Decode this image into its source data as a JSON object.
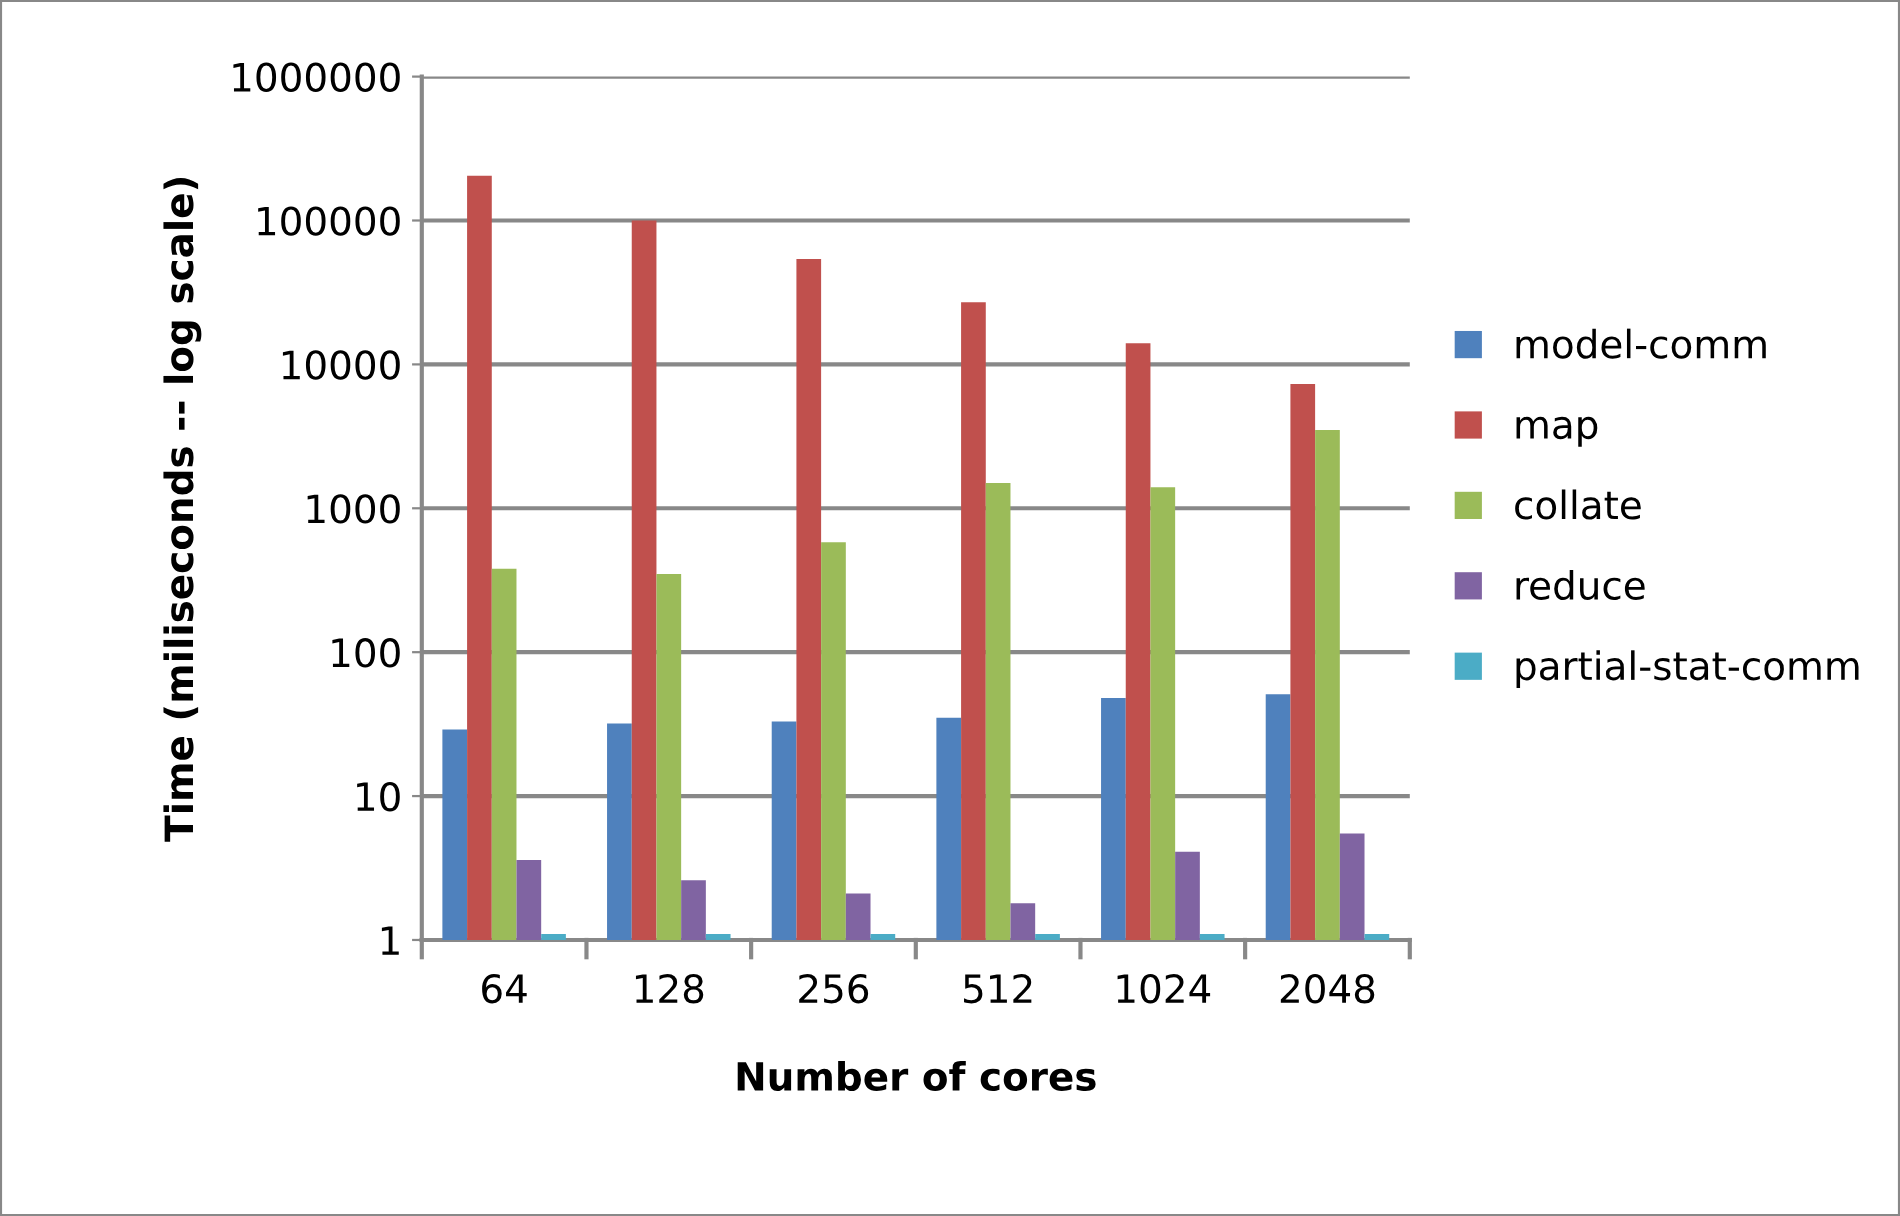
{
  "chart_data": {
    "type": "bar",
    "xlabel": "Number of cores",
    "ylabel": "Time (miliseconds -- log scale)",
    "categories": [
      "64",
      "128",
      "256",
      "512",
      "1024",
      "2048"
    ],
    "series": [
      {
        "name": "model-comm",
        "color": "#4f81bd",
        "values": [
          29,
          32,
          33,
          35,
          48,
          51
        ]
      },
      {
        "name": "map",
        "color": "#c0504d",
        "values": [
          205000,
          100000,
          54000,
          27000,
          14000,
          7300
        ]
      },
      {
        "name": "collate",
        "color": "#9bbb59",
        "values": [
          380,
          350,
          580,
          1500,
          1400,
          3500
        ]
      },
      {
        "name": "reduce",
        "color": "#8064a2",
        "values": [
          3.6,
          2.6,
          2.1,
          1.8,
          4.1,
          5.5
        ]
      },
      {
        "name": "partial-stat-comm",
        "color": "#4bacc6",
        "values": [
          1.1,
          1.1,
          1.1,
          1.1,
          1.1,
          1.1
        ]
      }
    ],
    "log": "y",
    "ylim": [
      1,
      1000000
    ],
    "yticks": [
      1,
      10,
      100,
      1000,
      10000,
      100000,
      1000000
    ],
    "grid": "y",
    "legend": "right"
  }
}
